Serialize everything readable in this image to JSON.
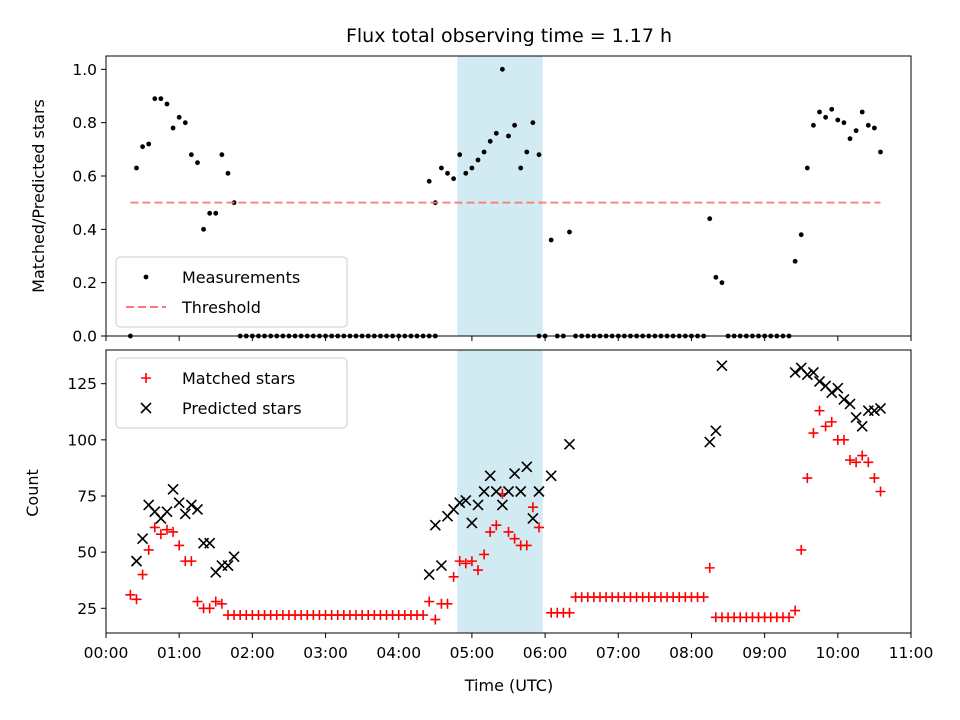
{
  "chart_data": [
    {
      "type": "scatter",
      "title": "Flux total observing time = 1.17 h",
      "ylabel": "Matched/Predicted stars",
      "xlabel": "",
      "xlim": [
        "00:00",
        "11:00"
      ],
      "ylim": [
        0,
        1.05
      ],
      "yticks": [
        0.0,
        0.2,
        0.4,
        0.6,
        0.8,
        1.0
      ],
      "ytick_labels": [
        "0.0",
        "0.2",
        "0.4",
        "0.6",
        "0.8",
        "1.0"
      ],
      "shaded_span": [
        "04:48",
        "05:58"
      ],
      "shaded_color": "#add8e6",
      "legend_position": "lower-left",
      "series": [
        {
          "name": "Measurements",
          "marker": "dot",
          "color": "#000000",
          "x": [
            "00:20",
            "00:25",
            "00:30",
            "00:35",
            "00:40",
            "00:45",
            "00:50",
            "00:55",
            "01:00",
            "01:05",
            "01:10",
            "01:15",
            "01:20",
            "01:25",
            "01:30",
            "01:35",
            "01:40",
            "01:45",
            "04:25",
            "04:30",
            "04:35",
            "04:40",
            "04:45",
            "04:50",
            "04:55",
            "05:00",
            "05:05",
            "05:10",
            "05:15",
            "05:20",
            "05:25",
            "05:30",
            "05:35",
            "05:40",
            "05:45",
            "05:50",
            "05:55",
            "06:05",
            "06:20",
            "08:15",
            "08:20",
            "08:25",
            "09:25",
            "09:30",
            "09:35",
            "09:40",
            "09:45",
            "09:50",
            "09:55",
            "10:00",
            "10:05",
            "10:10",
            "10:15",
            "10:20",
            "10:25",
            "10:30",
            "10:35"
          ],
          "y": [
            0.0,
            0.63,
            0.71,
            0.72,
            0.89,
            0.89,
            0.87,
            0.78,
            0.82,
            0.8,
            0.68,
            0.65,
            0.4,
            0.46,
            0.46,
            0.68,
            0.61,
            0.5,
            0.58,
            0.5,
            0.63,
            0.61,
            0.59,
            0.68,
            0.61,
            0.63,
            0.66,
            0.69,
            0.73,
            0.76,
            1.0,
            0.75,
            0.79,
            0.63,
            0.69,
            0.8,
            0.68,
            0.36,
            0.39,
            0.44,
            0.22,
            0.2,
            0.28,
            0.38,
            0.63,
            0.79,
            0.84,
            0.82,
            0.85,
            0.81,
            0.8,
            0.74,
            0.77,
            0.84,
            0.79,
            0.78,
            0.69
          ],
          "zero_runs": [
            [
              "01:50",
              "04:30"
            ],
            [
              "05:55",
              "06:00"
            ],
            [
              "06:10",
              "06:15"
            ],
            [
              "06:25",
              "06:30"
            ],
            [
              "06:35",
              "07:05"
            ],
            [
              "07:10",
              "07:15"
            ],
            [
              "07:20",
              "08:10"
            ],
            [
              "08:30",
              "09:20"
            ]
          ]
        },
        {
          "name": "Threshold",
          "line_style": "dashed",
          "color": "#ff7777",
          "x": [
            "00:20",
            "10:35"
          ],
          "y": [
            0.5,
            0.5
          ]
        }
      ]
    },
    {
      "type": "scatter",
      "title": "",
      "xlabel": "Time (UTC)",
      "ylabel": "Count",
      "xlim": [
        "00:00",
        "11:00"
      ],
      "ylim": [
        14,
        140
      ],
      "yticks": [
        25,
        50,
        75,
        100,
        125
      ],
      "ytick_labels": [
        "25",
        "50",
        "75",
        "100",
        "125"
      ],
      "xticks": [
        "00:00",
        "01:00",
        "02:00",
        "03:00",
        "04:00",
        "05:00",
        "06:00",
        "07:00",
        "08:00",
        "09:00",
        "10:00",
        "11:00"
      ],
      "shaded_span": [
        "04:48",
        "05:58"
      ],
      "shaded_color": "#add8e6",
      "legend_position": "upper-left",
      "series": [
        {
          "name": "Matched stars",
          "marker": "plus",
          "color": "#ff0000",
          "x": [
            "00:20",
            "00:25",
            "00:30",
            "00:35",
            "00:40",
            "00:45",
            "00:50",
            "00:55",
            "01:00",
            "01:05",
            "01:10",
            "01:15",
            "01:20",
            "01:25",
            "01:30",
            "01:35",
            "01:40",
            "01:45",
            "04:25",
            "04:30",
            "04:35",
            "04:40",
            "04:45",
            "04:50",
            "04:55",
            "05:00",
            "05:05",
            "05:10",
            "05:15",
            "05:20",
            "05:25",
            "05:30",
            "05:35",
            "05:40",
            "05:45",
            "05:50",
            "05:55",
            "08:15",
            "09:25",
            "09:30",
            "09:35",
            "09:40",
            "09:45",
            "09:50",
            "09:55",
            "10:00",
            "10:05",
            "10:10",
            "10:15",
            "10:20",
            "10:25",
            "10:30",
            "10:35"
          ],
          "y": [
            31,
            29,
            40,
            51,
            61,
            58,
            60,
            59,
            53,
            46,
            46,
            28,
            25,
            25,
            28,
            27,
            22,
            22,
            28,
            20,
            27,
            27,
            39,
            46,
            45,
            46,
            42,
            49,
            59,
            62,
            76,
            59,
            56,
            53,
            53,
            70,
            61,
            43,
            24,
            51,
            83,
            103,
            113,
            106,
            108,
            100,
            100,
            91,
            90,
            93,
            90,
            83,
            77
          ],
          "baseline_runs": [
            {
              "from": "01:50",
              "to": "04:20",
              "value": 22
            },
            {
              "from": "06:05",
              "to": "06:20",
              "value": 23
            },
            {
              "from": "06:25",
              "to": "08:10",
              "value": 30
            },
            {
              "from": "08:20",
              "to": "09:20",
              "value": 21
            }
          ]
        },
        {
          "name": "Predicted stars",
          "marker": "x",
          "color": "#000000",
          "x": [
            "00:25",
            "00:30",
            "00:35",
            "00:40",
            "00:45",
            "00:50",
            "00:55",
            "01:00",
            "01:05",
            "01:10",
            "01:15",
            "01:20",
            "01:25",
            "01:30",
            "01:35",
            "01:40",
            "01:45",
            "04:25",
            "04:30",
            "04:35",
            "04:40",
            "04:45",
            "04:50",
            "04:55",
            "05:00",
            "05:05",
            "05:10",
            "05:15",
            "05:20",
            "05:25",
            "05:30",
            "05:35",
            "05:40",
            "05:45",
            "05:50",
            "05:55",
            "06:05",
            "06:20",
            "08:15",
            "08:20",
            "08:25",
            "09:25",
            "09:30",
            "09:35",
            "09:40",
            "09:45",
            "09:50",
            "09:55",
            "10:00",
            "10:05",
            "10:10",
            "10:15",
            "10:20",
            "10:25",
            "10:30",
            "10:35"
          ],
          "y": [
            46,
            56,
            71,
            68,
            65,
            68,
            78,
            72,
            67,
            71,
            69,
            54,
            54,
            41,
            44,
            44,
            48,
            40,
            62,
            44,
            66,
            69,
            72,
            73,
            63,
            71,
            77,
            84,
            77,
            71,
            77,
            85,
            77,
            88,
            65,
            77,
            84,
            98,
            99,
            104,
            133,
            130,
            132,
            129,
            130,
            126,
            124,
            121,
            123,
            118,
            116,
            110,
            106,
            113,
            113,
            114
          ]
        }
      ]
    }
  ]
}
